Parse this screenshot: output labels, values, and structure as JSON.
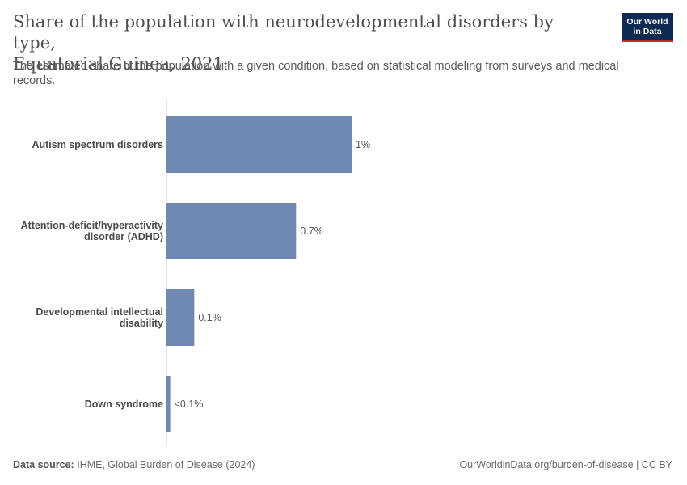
{
  "header": {
    "title_line1": "Share of the population with neurodevelopmental disorders by type,",
    "title_line2": "Equatorial Guinea, 2021",
    "subtitle": "The estimated share of the population with a given condition, based on statistical modeling from surveys and medical records."
  },
  "logo": {
    "line1": "Our World",
    "line2": "in Data"
  },
  "footer": {
    "source_label": "Data source:",
    "source_text": "IHME, Global Burden of Disease (2024)",
    "url_text": "OurWorldinData.org/burden-of-disease | CC BY"
  },
  "colors": {
    "bar": "#6f89b3",
    "axis": "#cccccc"
  },
  "chart_data": {
    "type": "bar",
    "orientation": "horizontal",
    "title": "Share of the population with neurodevelopmental disorders by type, Equatorial Guinea, 2021",
    "unit": "%",
    "categories": [
      [
        "Autism spectrum disorders"
      ],
      [
        "Attention-deficit/hyperactivity",
        "disorder (ADHD)"
      ],
      [
        "Developmental intellectual",
        "disability"
      ],
      [
        "Down syndrome"
      ]
    ],
    "values": [
      1.0,
      0.7,
      0.15,
      0.02
    ],
    "value_labels": [
      "1%",
      "0.7%",
      "0.1%",
      "<0.1%"
    ],
    "xlim": [
      0,
      1.0
    ]
  }
}
